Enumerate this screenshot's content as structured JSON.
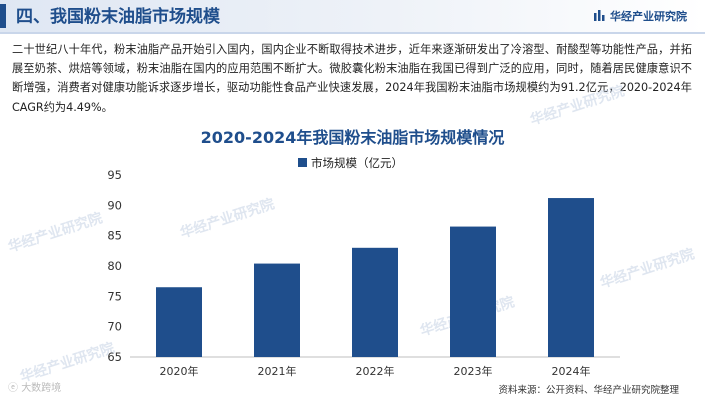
{
  "header": {
    "section_title": "四、我国粉末油脂市场规模",
    "brand": "华经产业研究院"
  },
  "paragraph": "二十世纪八十年代，粉末油脂产品开始引入国内，国内企业不断取得技术进步，近年来逐渐研发出了冷溶型、耐酸型等功能性产品，并拓展至奶茶、烘焙等领域，粉末油脂在国内的应用范围不断扩大。微胶囊化粉末油脂在我国已得到广泛的应用，同时，随着居民健康意识不断增强，消费者对健康功能诉求逐步增长，驱动功能性食品产业快速发展，2024年我国粉末油脂市场规模约为91.2亿元，2020-2024年CAGR约为4.49%。",
  "watermarks": [
    "华经产业研究院",
    "华经产业研究院",
    "华经产业研究院",
    "华经产业研究院",
    "华经产业研究院",
    "华经产业研究院"
  ],
  "corner_mark": "大数跨境",
  "source": "资料来源：公开资料、华经产业研究院整理",
  "colors": {
    "bar": "#1f4e8c",
    "title": "#1f4e8c"
  },
  "chart_data": {
    "type": "bar",
    "title": "2020-2024年我国粉末油脂市场规模情况",
    "categories": [
      "2020年",
      "2021年",
      "2022年",
      "2023年",
      "2024年"
    ],
    "series": [
      {
        "name": "市场规模（亿元）",
        "values": [
          76.5,
          80.4,
          83.0,
          86.5,
          91.2
        ]
      }
    ],
    "ylim": [
      65,
      95
    ],
    "yticks": [
      65,
      70,
      75,
      80,
      85,
      90,
      95
    ],
    "legend_position": "top",
    "grid": false
  }
}
